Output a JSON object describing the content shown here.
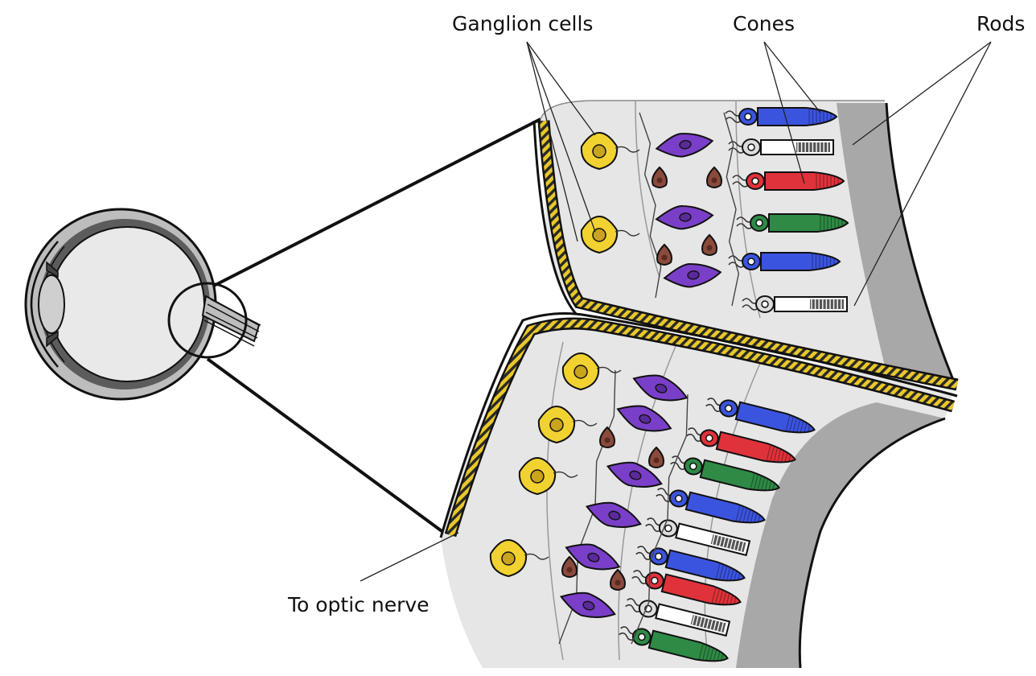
{
  "labels": {
    "ganglion": "Ganglion cells",
    "cones": "Cones",
    "rods": "Rods",
    "optic_nerve": "To optic nerve"
  },
  "colors": {
    "ganglion": "#f2d230",
    "bipolar": "#7a3fc8",
    "horizontal": "#8a4a3c",
    "cone_blue": "#3b54e0",
    "cone_red": "#e0323a",
    "cone_green": "#2e8a45",
    "rod": "#ffffff",
    "tissue": "#e6e6e6",
    "pigment": "#a8a8a8",
    "nerve_stripe": "#e8c82a"
  },
  "upper_panel": {
    "photoreceptors": [
      "cone-blue",
      "rod",
      "cone-red",
      "cone-green",
      "cone-blue",
      "rod"
    ],
    "ganglion_count": 2,
    "bipolar_count": 3,
    "horizontal_count": 4
  },
  "lower_panel": {
    "photoreceptors": [
      "cone-blue",
      "cone-red",
      "cone-green",
      "cone-blue",
      "rod",
      "cone-blue",
      "cone-red",
      "rod",
      "cone-green"
    ],
    "ganglion_count": 4,
    "bipolar_count": 6,
    "horizontal_count": 4
  }
}
